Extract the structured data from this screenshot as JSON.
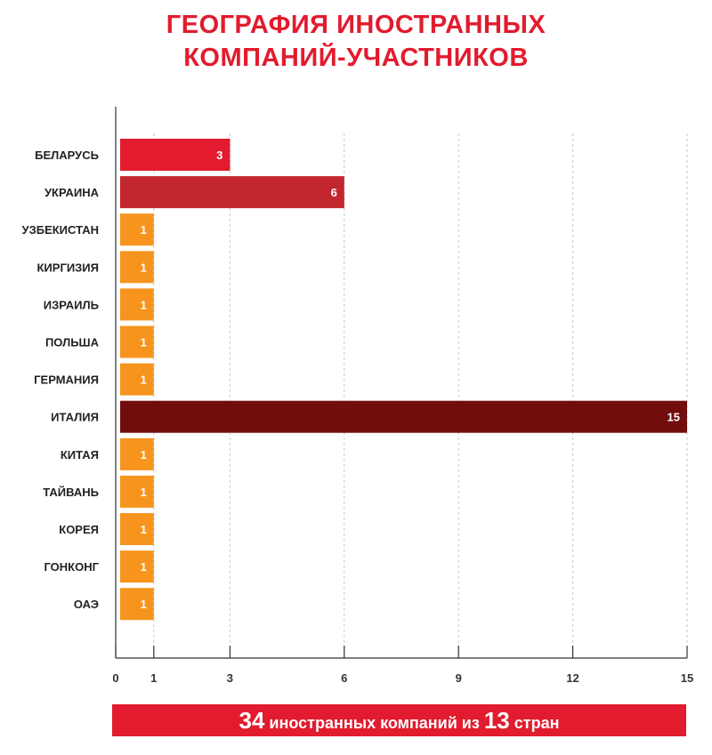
{
  "title": [
    "ГЕОГРАФИЯ ИНОСТРАННЫХ",
    "КОМПАНИЙ-УЧАСТНИКОВ"
  ],
  "chart_data": {
    "type": "bar",
    "orientation": "horizontal",
    "title": "ГЕОГРАФИЯ ИНОСТРАННЫХ КОМПАНИЙ-УЧАСТНИКОВ",
    "categories": [
      "БЕЛАРУСЬ",
      "УКРАИНА",
      "УЗБЕКИСТАН",
      "КИРГИЗИЯ",
      "ИЗРАИЛЬ",
      "ПОЛЬША",
      "ГЕРМАНИЯ",
      "ИТАЛИЯ",
      "КИТАЯ",
      "ТАЙВАНЬ",
      "КОРЕЯ",
      "ГОНКОНГ",
      "ОАЭ"
    ],
    "values": [
      3,
      6,
      1,
      1,
      1,
      1,
      1,
      15,
      1,
      1,
      1,
      1,
      1
    ],
    "colors": [
      "#e21b2e",
      "#c2272d",
      "#f7941d",
      "#f7941d",
      "#f7941d",
      "#f7941d",
      "#f7941d",
      "#720d0e",
      "#f7941d",
      "#f7941d",
      "#f7941d",
      "#f7941d",
      "#f7941d"
    ],
    "xticks": [
      0,
      1,
      3,
      6,
      9,
      12,
      15
    ],
    "xlim": [
      0,
      15
    ],
    "grid": true,
    "xlabel": "",
    "ylabel": ""
  },
  "footer": {
    "count": "34",
    "text1": "иностранных компаний из",
    "countries": "13",
    "text2": "стран"
  },
  "colors": {
    "accent": "#e21b2e"
  }
}
